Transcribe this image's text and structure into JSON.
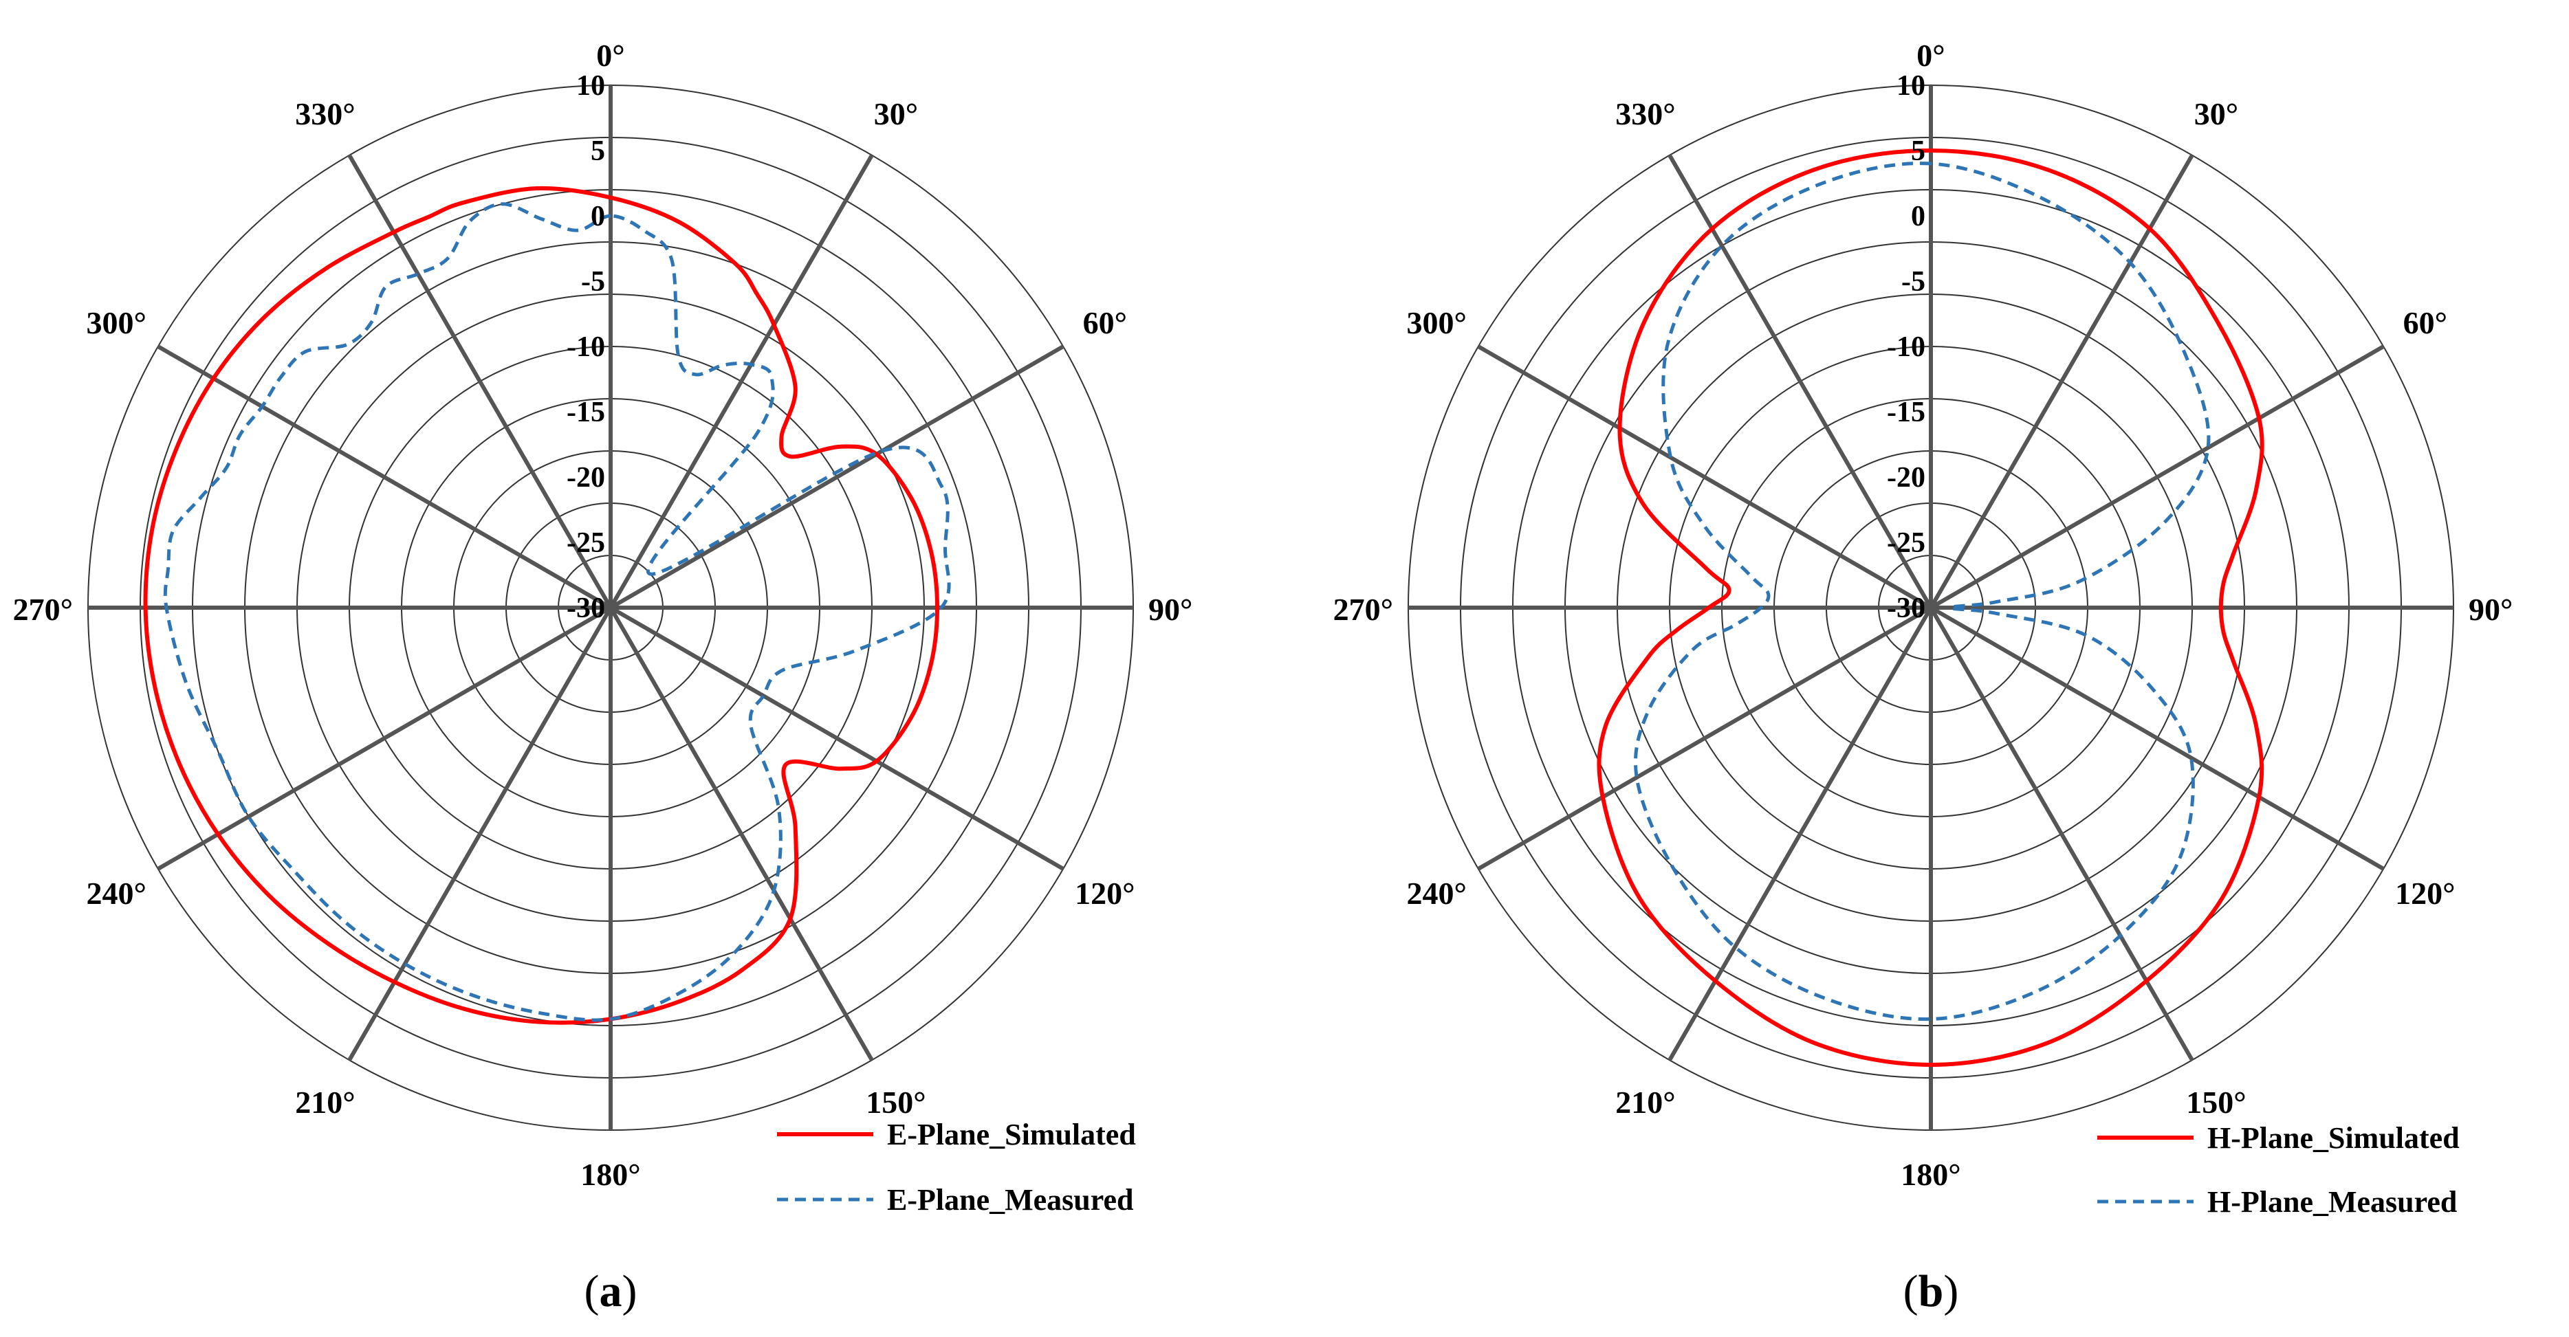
{
  "chart_data": [
    {
      "type": "polar-line",
      "panel_label": "a",
      "angle_labels": [
        "0°",
        "330°",
        "300°",
        "270°",
        "240°",
        "210°",
        "180°",
        "150°",
        "120°",
        "90°",
        "60°",
        "30°"
      ],
      "radial_labels": [
        "10",
        "5",
        "0",
        "-5",
        "-10",
        "-15",
        "-20",
        "-25",
        "-30"
      ],
      "rlim": [
        -30,
        10
      ],
      "angle_direction": "counterclockwise",
      "angle_zero": "top",
      "grid": true,
      "legend_position": "bottom-right",
      "colors": {
        "simulated": "#ff0000",
        "measured": "#2e75b6",
        "grid": "#555555",
        "ring": "#333333"
      },
      "series": [
        {
          "name": "E-Plane_Simulated",
          "style": "solid",
          "theta": [
            0,
            10,
            20,
            25,
            30,
            40,
            50,
            60,
            70,
            80,
            90,
            100,
            110,
            120,
            130,
            140,
            150,
            160,
            170,
            180,
            190,
            200,
            210,
            220,
            228,
            235,
            240,
            250,
            260,
            270,
            280,
            290,
            300,
            305,
            310,
            315,
            320,
            330,
            335,
            340,
            350
          ],
          "r": [
            1.4,
            2.6,
            3.0,
            3.0,
            3.2,
            3.9,
            4.6,
            5.1,
            5.4,
            5.6,
            5.6,
            5.4,
            5.1,
            4.7,
            4.2,
            3.6,
            3.1,
            2.7,
            2.2,
            1.5,
            0.6,
            -0.5,
            -2.5,
            -8.0,
            -12.0,
            -8.5,
            -6.5,
            -5.5,
            -5.1,
            -5.0,
            -5.1,
            -5.5,
            -6.5,
            -8.5,
            -12.0,
            -11.5,
            -8.0,
            -5.0,
            -3.5,
            -2.0,
            0.0
          ]
        },
        {
          "name": "E-Plane_Measured",
          "style": "dashed",
          "theta": [
            0,
            5,
            10,
            15,
            20,
            25,
            30,
            35,
            40,
            45,
            50,
            55,
            60,
            65,
            70,
            75,
            80,
            85,
            90,
            100,
            110,
            120,
            130,
            140,
            150,
            160,
            170,
            180,
            190,
            200,
            210,
            220,
            230,
            240,
            250,
            260,
            270,
            280,
            290,
            300,
            310,
            320,
            325,
            330,
            335,
            340,
            345,
            350,
            355
          ],
          "r": [
            0.0,
            -1.0,
            0.2,
            2.0,
            1.5,
            -0.5,
            -0.5,
            0.0,
            -1.5,
            -1.5,
            0.5,
            0.8,
            0.8,
            1.3,
            1.3,
            2.5,
            4.0,
            4.0,
            4.0,
            3.0,
            2.0,
            2.0,
            1.5,
            1.5,
            1.5,
            1.5,
            1.5,
            1.5,
            0.0,
            -2.0,
            -5.0,
            -10.0,
            -16.0,
            -16.5,
            -16.0,
            -11.0,
            -4.7,
            -4.0,
            -3.0,
            -6.0,
            -26.0,
            -12.5,
            -8.5,
            -8.5,
            -9.5,
            -11.0,
            -10.0,
            -3.0,
            -1.0
          ]
        }
      ]
    },
    {
      "type": "polar-line",
      "panel_label": "b",
      "angle_labels": [
        "0°",
        "330°",
        "300°",
        "270°",
        "240°",
        "210°",
        "180°",
        "150°",
        "120°",
        "90°",
        "60°",
        "30°"
      ],
      "radial_labels": [
        "10",
        "5",
        "0",
        "-5",
        "-10",
        "-15",
        "-20",
        "-25",
        "-30"
      ],
      "rlim": [
        -30,
        10
      ],
      "angle_direction": "counterclockwise",
      "angle_zero": "top",
      "grid": true,
      "legend_position": "bottom-right",
      "colors": {
        "simulated": "#ff0000",
        "measured": "#2e75b6",
        "grid": "#555555",
        "ring": "#333333"
      },
      "series": [
        {
          "name": "H-Plane_Simulated",
          "style": "solid",
          "theta": [
            0,
            15,
            30,
            45,
            60,
            70,
            80,
            85,
            90,
            95,
            100,
            110,
            120,
            135,
            150,
            165,
            180,
            195,
            210,
            225,
            240,
            250,
            260,
            265,
            270,
            275,
            280,
            290,
            300,
            315,
            330,
            345
          ],
          "r": [
            5.0,
            4.7,
            3.5,
            1.0,
            -2.5,
            -6.5,
            -12.5,
            -14.5,
            -13.0,
            -10.5,
            -8.0,
            -3.5,
            -1.0,
            1.5,
            3.0,
            4.5,
            5.0,
            4.5,
            3.0,
            1.5,
            -1.0,
            -3.5,
            -6.5,
            -7.5,
            -7.8,
            -7.5,
            -6.5,
            -3.5,
            -1.0,
            1.0,
            3.5,
            4.7
          ]
        },
        {
          "name": "H-Plane_Measured",
          "style": "dashed",
          "theta": [
            0,
            15,
            30,
            45,
            60,
            70,
            80,
            85,
            90,
            95,
            100,
            110,
            120,
            135,
            150,
            165,
            180,
            195,
            210,
            225,
            240,
            250,
            260,
            265,
            270,
            275,
            280,
            290,
            300,
            315,
            330,
            345
          ],
          "r": [
            4.0,
            3.5,
            2.0,
            -1.5,
            -7.0,
            -11.5,
            -16.0,
            -17.5,
            -17.0,
            -15.0,
            -11.5,
            -7.0,
            -4.0,
            -2.0,
            0.0,
            1.0,
            1.5,
            0.5,
            -1.0,
            -3.0,
            -7.0,
            -12.0,
            -18.0,
            -25.0,
            -28.5,
            -25.0,
            -18.5,
            -11.0,
            -5.5,
            -2.5,
            0.5,
            2.5
          ]
        }
      ]
    }
  ]
}
